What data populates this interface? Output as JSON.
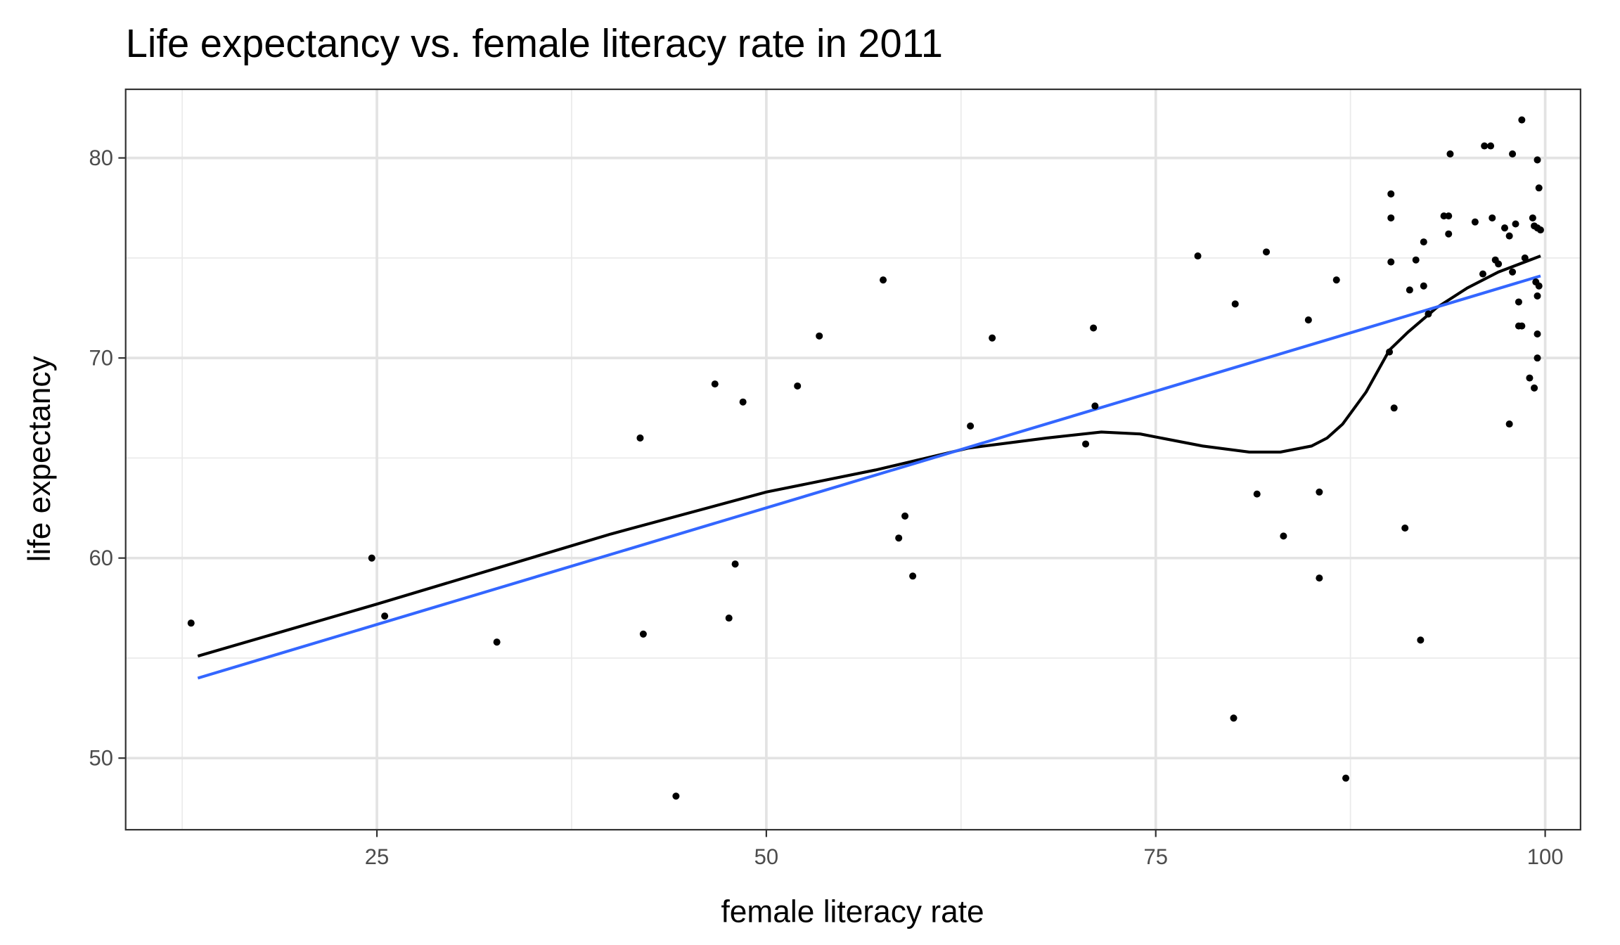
{
  "chart_data": {
    "type": "scatter",
    "title": "Life expectancy vs. female literacy rate in 2011",
    "xlabel": "female literacy rate",
    "ylabel": "life expectancy",
    "xlim": [
      8.87,
      102.27
    ],
    "ylim": [
      46.42,
      83.43
    ],
    "xticks": [
      25,
      50,
      75,
      100
    ],
    "yticks": [
      50,
      60,
      70,
      80
    ],
    "xtick_labels": [
      "25",
      "50",
      "75",
      "100"
    ],
    "ytick_labels": [
      "50",
      "60",
      "70",
      "80"
    ],
    "grid": true,
    "points": [
      [
        13.07,
        56.75
      ],
      [
        24.67,
        60.0
      ],
      [
        25.5,
        57.1
      ],
      [
        32.7,
        55.8
      ],
      [
        41.9,
        66.0
      ],
      [
        42.1,
        56.2
      ],
      [
        44.2,
        48.1
      ],
      [
        46.7,
        68.7
      ],
      [
        47.6,
        57.0
      ],
      [
        48.0,
        59.7
      ],
      [
        48.5,
        67.8
      ],
      [
        52.0,
        68.6
      ],
      [
        53.4,
        71.1
      ],
      [
        57.5,
        73.9
      ],
      [
        58.5,
        61.0
      ],
      [
        58.9,
        62.1
      ],
      [
        59.4,
        59.1
      ],
      [
        63.1,
        66.6
      ],
      [
        64.5,
        71.0
      ],
      [
        70.5,
        65.7
      ],
      [
        71.0,
        71.5
      ],
      [
        71.1,
        67.6
      ],
      [
        77.7,
        75.1
      ],
      [
        80.0,
        52.0
      ],
      [
        80.1,
        72.7
      ],
      [
        81.5,
        63.2
      ],
      [
        82.1,
        75.3
      ],
      [
        83.2,
        61.1
      ],
      [
        84.8,
        71.9
      ],
      [
        85.5,
        63.3
      ],
      [
        85.5,
        59.0
      ],
      [
        86.6,
        73.9
      ],
      [
        87.2,
        49.0
      ],
      [
        90.0,
        70.3
      ],
      [
        90.1,
        74.8
      ],
      [
        90.1,
        78.2
      ],
      [
        90.1,
        77.0
      ],
      [
        90.3,
        67.5
      ],
      [
        91.0,
        61.5
      ],
      [
        91.3,
        73.4
      ],
      [
        91.7,
        74.9
      ],
      [
        92.0,
        55.9
      ],
      [
        92.2,
        75.8
      ],
      [
        92.2,
        73.6
      ],
      [
        92.5,
        72.2
      ],
      [
        93.5,
        77.1
      ],
      [
        93.8,
        77.1
      ],
      [
        93.8,
        76.2
      ],
      [
        93.9,
        80.2
      ],
      [
        95.5,
        76.8
      ],
      [
        96.0,
        74.2
      ],
      [
        96.1,
        80.6
      ],
      [
        96.5,
        80.6
      ],
      [
        96.6,
        77.0
      ],
      [
        96.8,
        74.9
      ],
      [
        97.0,
        74.7
      ],
      [
        97.4,
        76.5
      ],
      [
        97.7,
        76.1
      ],
      [
        97.7,
        66.7
      ],
      [
        97.9,
        80.2
      ],
      [
        97.9,
        74.3
      ],
      [
        98.1,
        76.7
      ],
      [
        98.3,
        72.8
      ],
      [
        98.3,
        71.6
      ],
      [
        98.5,
        71.6
      ],
      [
        98.5,
        81.9
      ],
      [
        98.7,
        75.0
      ],
      [
        99.0,
        69.0
      ],
      [
        99.2,
        77.0
      ],
      [
        99.3,
        68.5
      ],
      [
        99.3,
        76.6
      ],
      [
        99.4,
        73.8
      ],
      [
        99.5,
        70.0
      ],
      [
        99.5,
        79.9
      ],
      [
        99.5,
        76.5
      ],
      [
        99.5,
        73.1
      ],
      [
        99.5,
        71.2
      ],
      [
        99.6,
        78.5
      ],
      [
        99.6,
        73.6
      ],
      [
        99.7,
        76.4
      ]
    ],
    "linear_fit": {
      "color": "#3366FF",
      "points": [
        [
          13.5,
          54.0
        ],
        [
          99.7,
          74.1
        ]
      ]
    },
    "loess_fit": {
      "color": "#000000",
      "points": [
        [
          13.5,
          55.1
        ],
        [
          25,
          57.7
        ],
        [
          40,
          61.2
        ],
        [
          50,
          63.3
        ],
        [
          57,
          64.4
        ],
        [
          63,
          65.5
        ],
        [
          68,
          66.0
        ],
        [
          71.5,
          66.3
        ],
        [
          74,
          66.2
        ],
        [
          78,
          65.6
        ],
        [
          81,
          65.3
        ],
        [
          83,
          65.3
        ],
        [
          85,
          65.6
        ],
        [
          86,
          66.0
        ],
        [
          87,
          66.7
        ],
        [
          88.5,
          68.3
        ],
        [
          90,
          70.4
        ],
        [
          91.2,
          71.3
        ],
        [
          93,
          72.5
        ],
        [
          95,
          73.5
        ],
        [
          97,
          74.3
        ],
        [
          99.7,
          75.1
        ]
      ]
    }
  }
}
